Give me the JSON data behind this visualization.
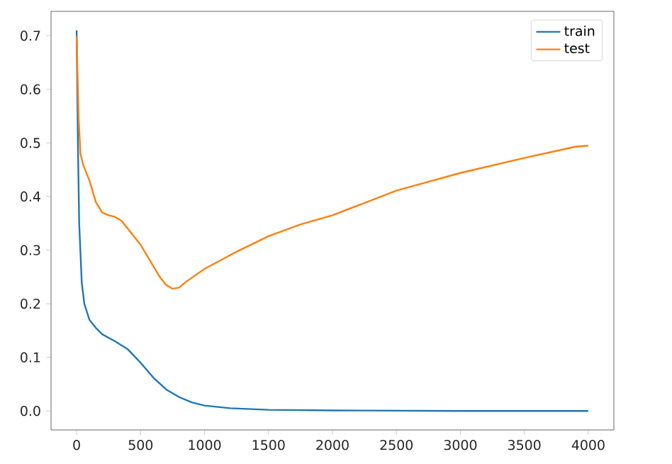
{
  "chart_data": {
    "type": "line",
    "xlim": [
      -200,
      4200
    ],
    "ylim": [
      -0.0355,
      0.7455
    ],
    "xticks": [
      0,
      500,
      1000,
      1500,
      2000,
      2500,
      3000,
      3500,
      4000
    ],
    "yticks": [
      {
        "value": 0,
        "label": "0.0"
      },
      {
        "value": 0.1,
        "label": "0.1"
      },
      {
        "value": 0.2,
        "label": "0.2"
      },
      {
        "value": 0.3,
        "label": "0.3"
      },
      {
        "value": 0.4,
        "label": "0.4"
      },
      {
        "value": 0.5,
        "label": "0.5"
      },
      {
        "value": 0.6,
        "label": "0.6"
      },
      {
        "value": 0.7,
        "label": "0.7"
      }
    ],
    "legend": "top right",
    "series": [
      {
        "name": "train",
        "color": "#1f77b4",
        "x": [
          0,
          10,
          20,
          40,
          60,
          100,
          150,
          200,
          300,
          400,
          500,
          600,
          700,
          800,
          900,
          1000,
          1200,
          1500,
          2000,
          3000,
          4000
        ],
        "values": [
          0.71,
          0.5,
          0.35,
          0.24,
          0.2,
          0.17,
          0.155,
          0.143,
          0.13,
          0.115,
          0.09,
          0.062,
          0.04,
          0.026,
          0.016,
          0.01,
          0.005,
          0.002,
          0.001,
          0.0,
          0.0
        ]
      },
      {
        "name": "test",
        "color": "#ff7f0e",
        "x": [
          0,
          15,
          30,
          50,
          100,
          150,
          200,
          250,
          300,
          350,
          400,
          500,
          600,
          650,
          700,
          750,
          800,
          850,
          1000,
          1250,
          1500,
          1750,
          2000,
          2500,
          3000,
          3500,
          3900,
          4000
        ],
        "values": [
          0.7,
          0.55,
          0.48,
          0.46,
          0.43,
          0.39,
          0.37,
          0.365,
          0.362,
          0.355,
          0.34,
          0.31,
          0.27,
          0.25,
          0.235,
          0.228,
          0.23,
          0.24,
          0.265,
          0.297,
          0.326,
          0.348,
          0.365,
          0.411,
          0.444,
          0.472,
          0.493,
          0.495
        ]
      }
    ]
  }
}
